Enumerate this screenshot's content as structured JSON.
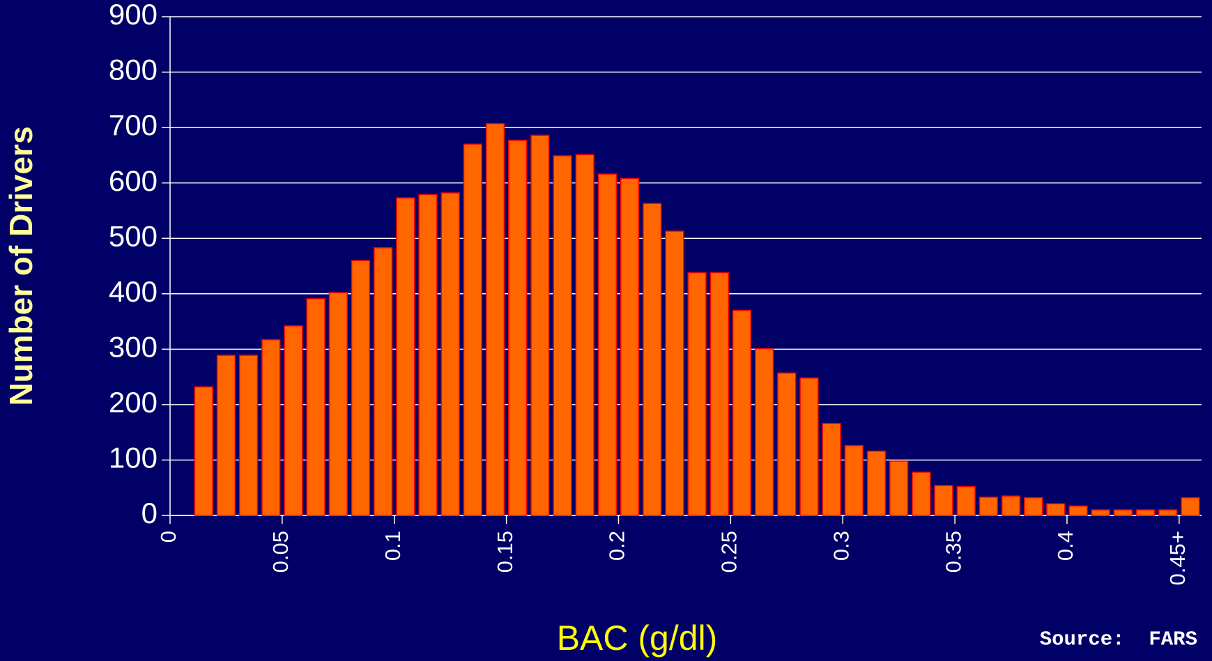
{
  "chart_data": {
    "type": "histogram",
    "y_label": "Number of Drivers",
    "x_label": "BAC (g/dl)",
    "source": "Source:  FARS",
    "bins": [
      0.01,
      0.02,
      0.03,
      0.04,
      0.05,
      0.06,
      0.07,
      0.08,
      0.09,
      0.1,
      0.11,
      0.12,
      0.13,
      0.14,
      0.15,
      0.16,
      0.17,
      0.18,
      0.19,
      0.2,
      0.21,
      0.22,
      0.23,
      0.24,
      0.25,
      0.26,
      0.27,
      0.28,
      0.29,
      0.3,
      0.31,
      0.32,
      0.33,
      0.34,
      0.35,
      0.36,
      0.37,
      0.38,
      0.39,
      0.4,
      0.41,
      0.42,
      0.43,
      0.44,
      0.45,
      0.46
    ],
    "values": [
      232,
      289,
      289,
      317,
      342,
      391,
      402,
      460,
      483,
      573,
      579,
      582,
      670,
      707,
      677,
      686,
      649,
      651,
      616,
      608,
      563,
      513,
      438,
      438,
      370,
      301,
      257,
      248,
      166,
      126,
      116,
      98,
      78,
      54,
      52,
      33,
      35,
      32,
      21,
      17,
      10,
      10,
      10,
      10,
      32
    ],
    "color": "#ff6600",
    "xlim": [
      0,
      0.46
    ],
    "ylim": [
      0,
      900
    ],
    "xticks": [
      0,
      0.05,
      0.1,
      0.15,
      0.2,
      0.25,
      0.3,
      0.35,
      0.4,
      {
        "value": 0.45,
        "label": "0.45+"
      }
    ],
    "yticks": [
      0,
      100,
      200,
      300,
      400,
      500,
      600,
      700,
      800,
      900
    ],
    "grid": true
  }
}
